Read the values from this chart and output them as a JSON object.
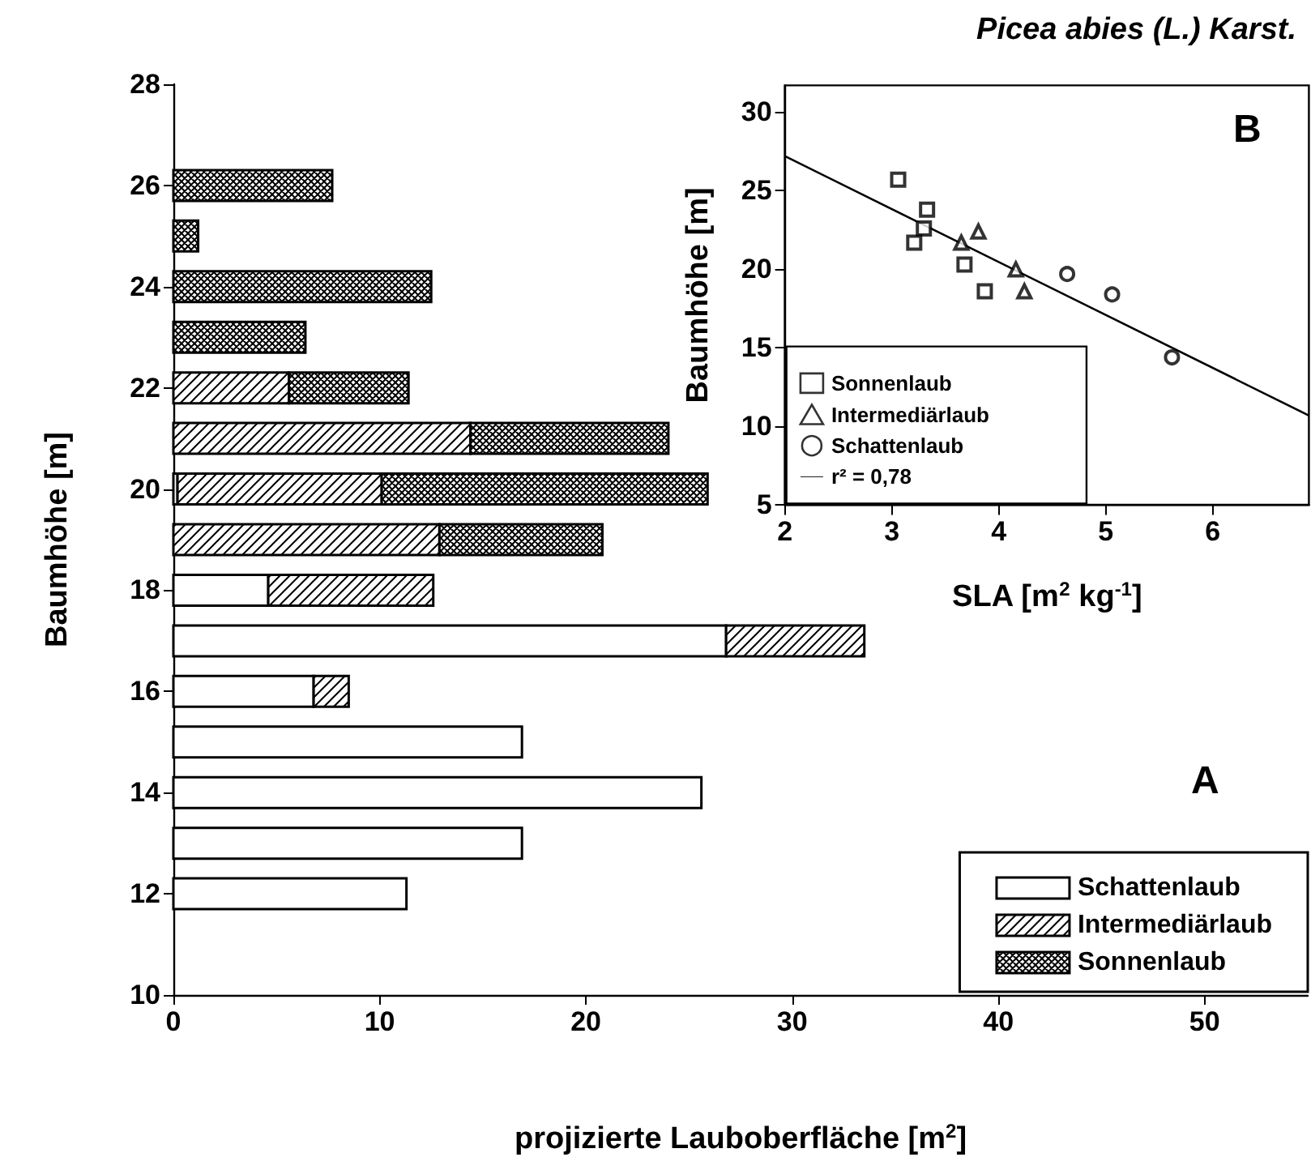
{
  "chart_data": [
    {
      "type": "bar",
      "orientation": "horizontal",
      "stacked": true,
      "title": "Picea abies (L.) Karst.",
      "xlabel": "projizierte Lauboberfläche [m$^{2}$]",
      "ylabel": "Baumhöhe [m]",
      "x": [
        12,
        13,
        14,
        15,
        16,
        17,
        18,
        19,
        20,
        21,
        22,
        23,
        24,
        25,
        26
      ],
      "series": [
        {
          "name": "Schattenlaub",
          "color": "#ffffff",
          "values": [
            11.3,
            16.9,
            25.6,
            16.9,
            6.8,
            26.8,
            4.6,
            null,
            0.2,
            null,
            null,
            null,
            null,
            null,
            null
          ]
        },
        {
          "name": "Intermediärlaub",
          "color": "#000000",
          "values": [
            null,
            null,
            null,
            null,
            1.7,
            6.7,
            8.0,
            12.9,
            9.9,
            14.4,
            5.6,
            null,
            null,
            null,
            null
          ]
        },
        {
          "name": "Sonnenlaub",
          "color": "#000000",
          "values": [
            null,
            null,
            null,
            null,
            null,
            null,
            null,
            7.9,
            15.8,
            9.6,
            5.8,
            6.4,
            12.5,
            1.2,
            7.7
          ]
        }
      ],
      "xlim": [
        0,
        55
      ],
      "xticks": [
        0,
        10,
        20,
        30,
        40,
        50
      ],
      "ylim": [
        10,
        28
      ],
      "yticks": [
        10,
        12,
        14,
        16,
        18,
        20,
        22,
        24,
        26,
        28
      ],
      "legend": "bottom right",
      "annotations": [
        "A"
      ]
    },
    {
      "type": "scatter",
      "xlabel": "SLA [m$^{2}$ kg$^{-1}$]",
      "ylabel": "Baumhöhe [m]",
      "series": [
        {
          "name": "Sonnenlaub",
          "color": "#000000",
          "marker": "square",
          "x": [
            3.06,
            3.33,
            3.3,
            3.21,
            3.68,
            3.87
          ],
          "values": [
            25.7,
            23.8,
            22.6,
            21.7,
            20.3,
            18.6
          ]
        },
        {
          "name": "Intermediärlaub",
          "color": "#000000",
          "marker": "triangle",
          "x": [
            3.81,
            3.65,
            4.16,
            4.24
          ],
          "values": [
            22.4,
            21.7,
            20.0,
            18.6
          ]
        },
        {
          "name": "Schattenlaub",
          "color": "#000000",
          "marker": "circle",
          "x": [
            4.64,
            5.06,
            5.62
          ],
          "values": [
            19.7,
            18.4,
            14.4
          ]
        },
        {
          "name": "r² = 0,78",
          "type": "line",
          "color": "#000000",
          "marker": "none",
          "x": [
            2,
            6.9
          ],
          "values": [
            27.2,
            10.7
          ]
        }
      ],
      "xlim": [
        2,
        6.9
      ],
      "xticks": [
        2,
        3,
        4,
        5,
        6
      ],
      "ylim": [
        5,
        31.7
      ],
      "yticks": [
        5,
        10,
        15,
        20,
        25,
        30
      ],
      "legend": "bottom left",
      "annotations": [
        "B"
      ]
    }
  ]
}
